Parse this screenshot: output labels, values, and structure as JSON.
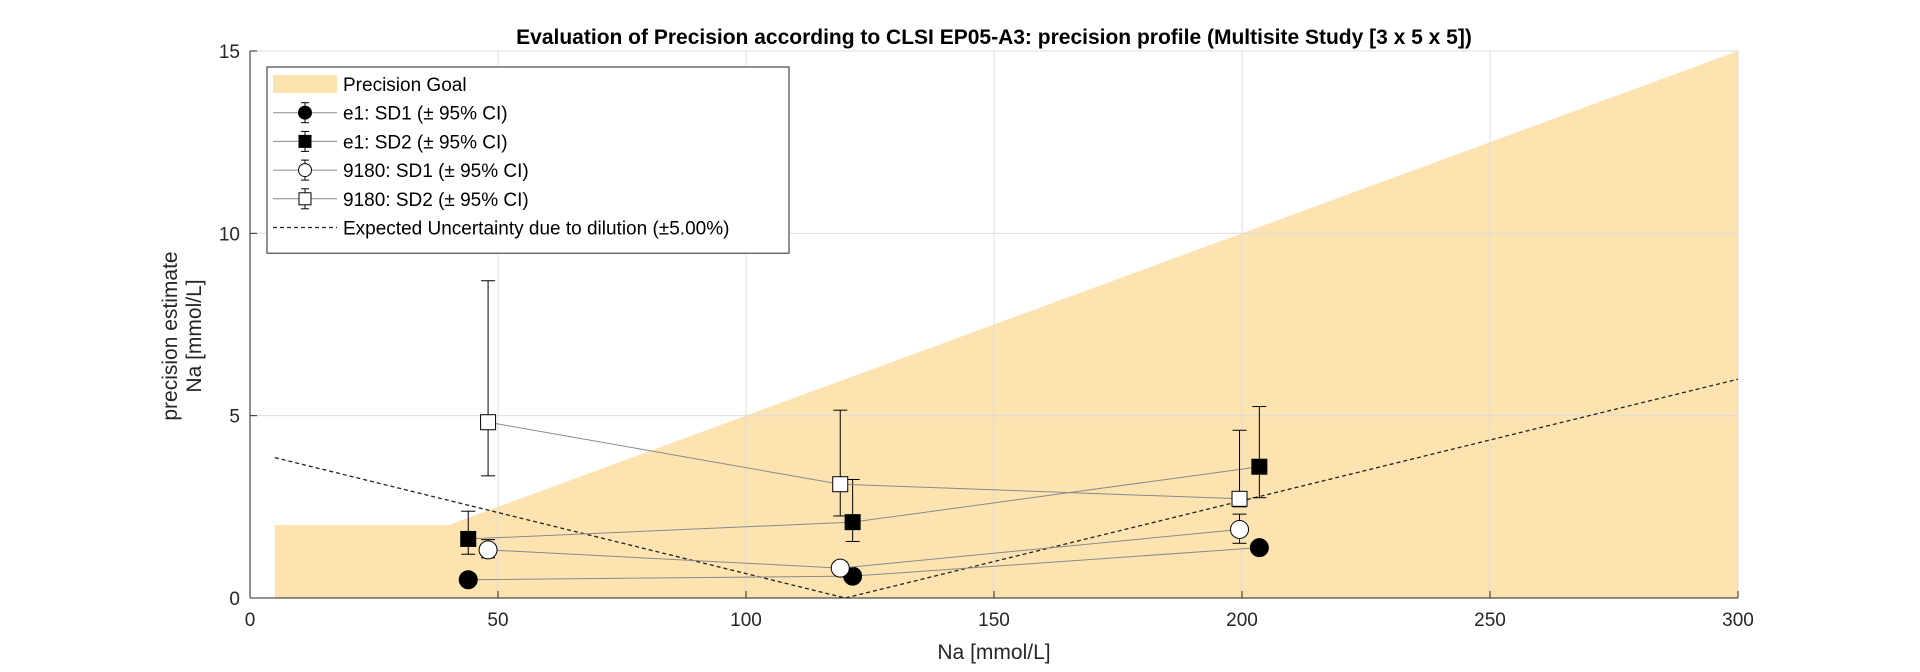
{
  "chart_data": {
    "type": "scatter",
    "title": "Evaluation of Precision according to CLSI EP05-A3: precision profile (Multisite Study [3 x 5 x 5])",
    "xlabel": "Na [mmol/L]",
    "ylabel_lines": [
      "precision estimate",
      "Na [mmol/L]"
    ],
    "xlim": [
      0,
      300
    ],
    "ylim": [
      0,
      15
    ],
    "xticks": [
      0,
      50,
      100,
      150,
      200,
      250,
      300
    ],
    "yticks": [
      0,
      5,
      10,
      15
    ],
    "grid": true,
    "legend_position": "top-left",
    "goal_color": "#fce3b0",
    "precision_goal": {
      "name": "Precision Goal",
      "x": [
        5,
        40,
        300
      ],
      "y": [
        2,
        2,
        15
      ]
    },
    "dilution_uncertainty": {
      "name": "Expected Uncertainty due to dilution (±5.00%)",
      "x": [
        5,
        120,
        300
      ],
      "y": [
        3.85,
        0,
        6.0
      ]
    },
    "series": [
      {
        "name": "e1: SD1 (± 95% CI)",
        "marker": "circle",
        "fill": "#000000",
        "x": [
          44,
          121.5,
          203.5
        ],
        "y": [
          0.5,
          0.6,
          1.38
        ],
        "err_low": [
          0.5,
          0.6,
          1.38
        ],
        "err_high": [
          0.5,
          0.6,
          1.38
        ]
      },
      {
        "name": "e1: SD2 (± 95% CI)",
        "marker": "square",
        "fill": "#000000",
        "x": [
          44,
          121.5,
          203.5
        ],
        "y": [
          1.62,
          2.08,
          3.6
        ],
        "err_low": [
          1.2,
          1.55,
          2.75
        ],
        "err_high": [
          2.38,
          3.25,
          5.25
        ]
      },
      {
        "name": "9180: SD1 (± 95% CI)",
        "marker": "circle",
        "fill": "#ffffff",
        "x": [
          48,
          119,
          199.5
        ],
        "y": [
          1.32,
          0.82,
          1.88
        ],
        "err_low": [
          1.1,
          0.7,
          1.5
        ],
        "err_high": [
          1.6,
          1.0,
          2.3
        ]
      },
      {
        "name": "9180: SD2 (± 95% CI)",
        "marker": "square",
        "fill": "#ffffff",
        "x": [
          48,
          119,
          199.5
        ],
        "y": [
          4.82,
          3.12,
          2.72
        ],
        "err_low": [
          3.35,
          2.25,
          2.5
        ],
        "err_high": [
          8.7,
          5.15,
          4.6
        ]
      }
    ]
  }
}
